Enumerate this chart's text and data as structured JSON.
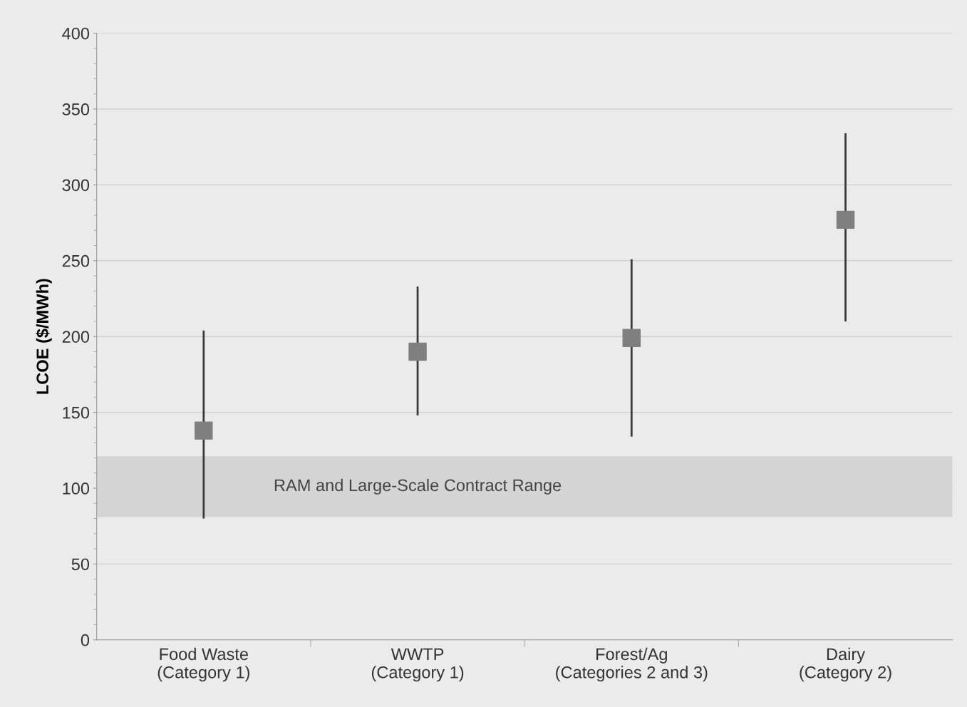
{
  "chart_data": {
    "type": "scatter",
    "ylabel": "LCOE ($/MWh)",
    "categories": [
      "Food Waste\n(Category 1)",
      "WWTP\n(Category 1)",
      "Forest/Ag\n(Categories 2 and 3)",
      "Dairy\n(Category 2)"
    ],
    "series": [
      {
        "color": "#7f7f7f",
        "values": [
          138,
          190,
          199,
          277
        ],
        "errors": [
          [
            80,
            204
          ],
          [
            148,
            233
          ],
          [
            134,
            251
          ],
          [
            210,
            334
          ]
        ]
      }
    ],
    "ylim": [
      0,
      400
    ],
    "yticks": [
      0,
      50,
      100,
      150,
      200,
      250,
      300,
      350,
      400
    ],
    "bands": [
      {
        "axis": "y",
        "from": 81,
        "to": 121,
        "label": "RAM and Large-Scale Contract Range",
        "color": "#d4d4d4"
      }
    ],
    "grid": "y",
    "marker": "square",
    "legend": false
  }
}
